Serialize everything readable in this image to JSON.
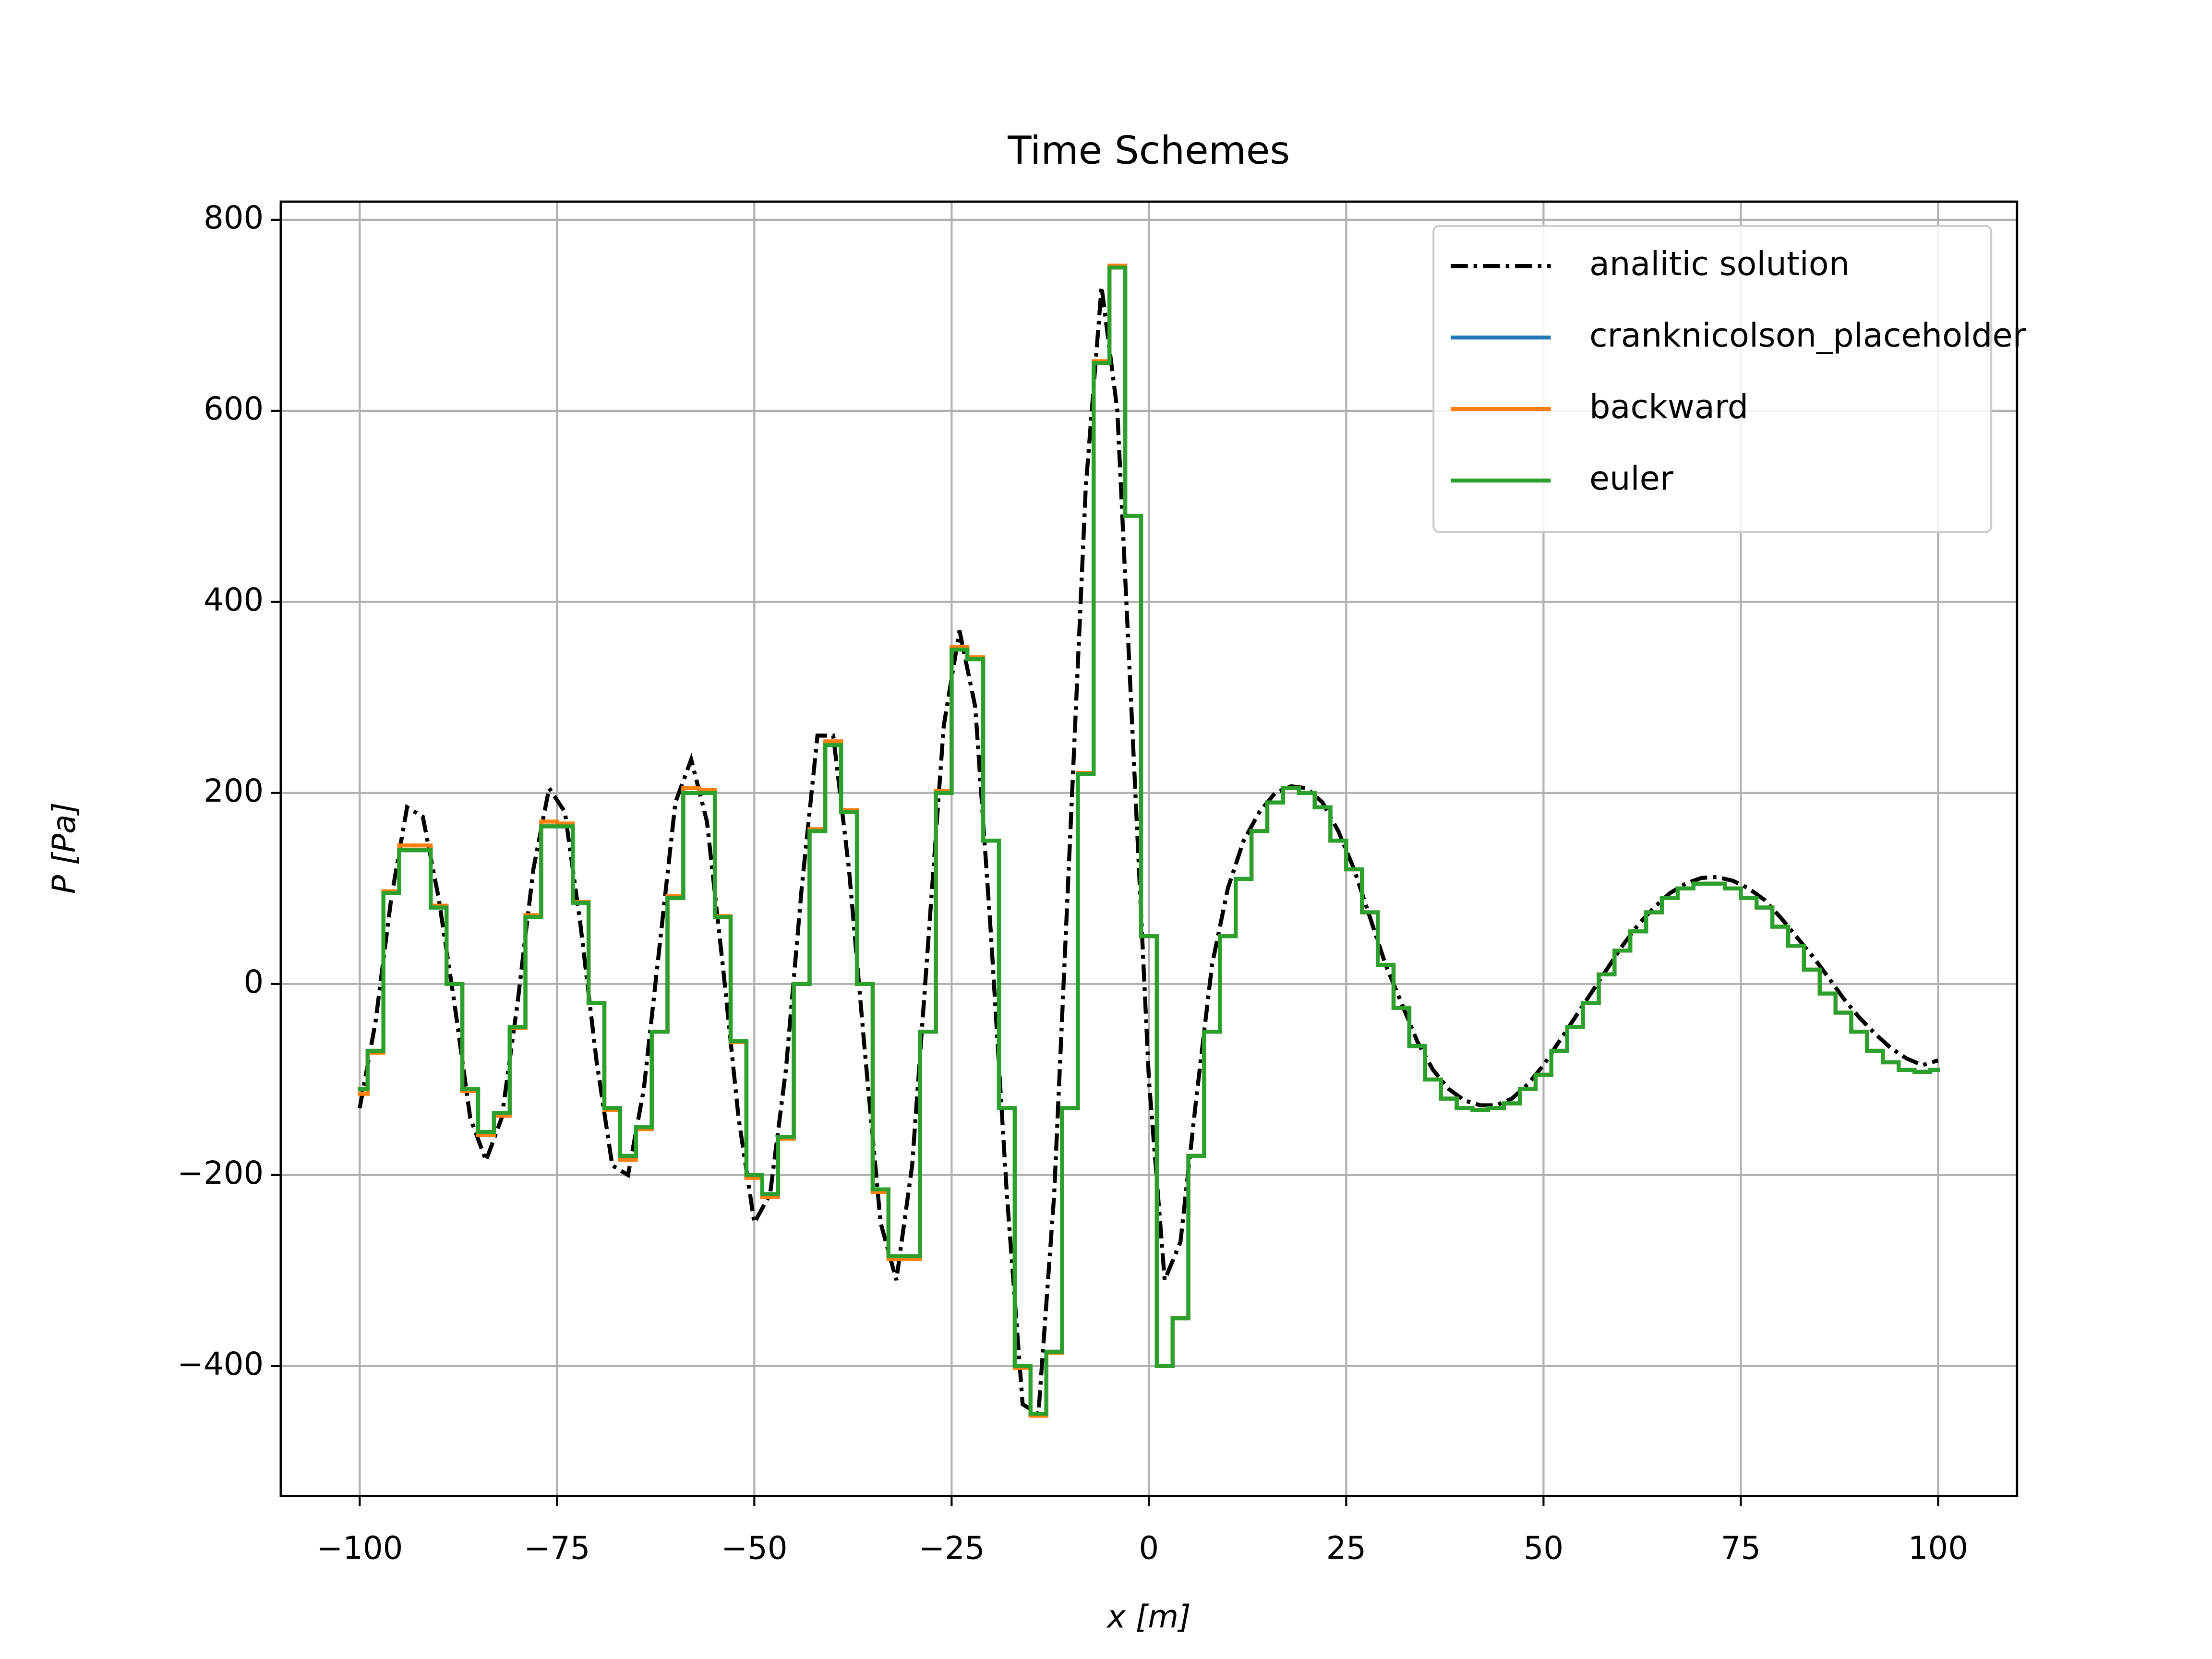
{
  "chart_data": {
    "type": "line",
    "title": "Time Schemes",
    "xlabel": "x [m]",
    "ylabel": "P [Pa]",
    "grid": true,
    "legend": "upper right",
    "xlim": [
      -110,
      110
    ],
    "ylim": [
      -536,
      819
    ],
    "xticks": [
      {
        "value": -100,
        "label": "−100"
      },
      {
        "value": -75,
        "label": "−75"
      },
      {
        "value": -50,
        "label": "−50"
      },
      {
        "value": -25,
        "label": "−25"
      },
      0,
      25,
      50,
      75,
      100
    ],
    "yticks": [
      {
        "value": -400,
        "label": "−400"
      },
      {
        "value": -200,
        "label": "−200"
      },
      0,
      200,
      400,
      600,
      800
    ],
    "x": [
      -100,
      -98,
      -96,
      -94,
      -92,
      -90,
      -88,
      -86,
      -84,
      -82,
      -80,
      -78,
      -76,
      -74,
      -72,
      -70,
      -68,
      -66,
      -64,
      -62,
      -60,
      -58,
      -56,
      -54,
      -52,
      -50,
      -48,
      -46,
      -44,
      -42,
      -40,
      -38,
      -36,
      -34,
      -32,
      -30,
      -28,
      -26,
      -24,
      -22,
      -20,
      -18,
      -16,
      -14,
      -12,
      -10,
      -8,
      -6,
      -4,
      -2,
      0,
      2,
      4,
      6,
      8,
      10,
      12,
      14,
      16,
      18,
      20,
      22,
      24,
      26,
      28,
      30,
      32,
      34,
      36,
      38,
      40,
      42,
      44,
      46,
      48,
      50,
      52,
      54,
      56,
      58,
      60,
      62,
      64,
      66,
      68,
      70,
      72,
      74,
      76,
      78,
      80,
      82,
      84,
      86,
      88,
      90,
      92,
      94,
      96,
      98,
      100
    ],
    "series": [
      {
        "name": "analitic solution",
        "color": "#000000",
        "linestyle": "dashdot",
        "drawstyle": "default",
        "values": [
          -130,
          -40,
          90,
          185,
          175,
          90,
          -20,
          -140,
          -185,
          -140,
          -20,
          120,
          205,
          180,
          60,
          -80,
          -190,
          -200,
          -110,
          40,
          190,
          235,
          170,
          20,
          -140,
          -250,
          -220,
          -90,
          100,
          260,
          260,
          120,
          -70,
          -250,
          -310,
          -190,
          40,
          270,
          370,
          290,
          50,
          -220,
          -440,
          -450,
          -220,
          150,
          520,
          730,
          600,
          250,
          -100,
          -310,
          -270,
          -120,
          20,
          100,
          150,
          180,
          200,
          207,
          205,
          190,
          160,
          120,
          70,
          20,
          -20,
          -60,
          -90,
          -110,
          -122,
          -127,
          -127,
          -120,
          -105,
          -85,
          -60,
          -35,
          -10,
          15,
          40,
          62,
          80,
          95,
          105,
          111,
          112,
          108,
          100,
          88,
          70,
          50,
          30,
          8,
          -15,
          -35,
          -52,
          -67,
          -78,
          -85,
          -80
        ]
      },
      {
        "name": "cranknicolson_placeholder",
        "color": "#1f77b4",
        "linestyle": "solid",
        "drawstyle": "steps-mid",
        "values": [
          -110,
          -70,
          95,
          140,
          140,
          80,
          0,
          -110,
          -155,
          -135,
          -45,
          70,
          165,
          165,
          85,
          -20,
          -130,
          -180,
          -150,
          -50,
          90,
          200,
          200,
          70,
          -60,
          -200,
          -220,
          -160,
          0,
          160,
          250,
          180,
          0,
          -215,
          -285,
          -285,
          -50,
          200,
          350,
          340,
          150,
          -130,
          -400,
          -450,
          -385,
          -130,
          220,
          650,
          750,
          490,
          50,
          -400,
          -350,
          -180,
          -50,
          50,
          110,
          160,
          190,
          205,
          200,
          185,
          150,
          120,
          75,
          20,
          -25,
          -65,
          -100,
          -120,
          -130,
          -132,
          -130,
          -125,
          -110,
          -95,
          -70,
          -45,
          -20,
          10,
          35,
          55,
          75,
          90,
          100,
          105,
          105,
          100,
          90,
          80,
          60,
          40,
          15,
          -10,
          -30,
          -50,
          -70,
          -82,
          -90,
          -92,
          -90
        ]
      },
      {
        "name": "backward",
        "color": "#ff7f0e",
        "linestyle": "solid",
        "drawstyle": "steps-mid",
        "values": [
          -115,
          -72,
          97,
          145,
          145,
          82,
          0,
          -112,
          -158,
          -138,
          -46,
          72,
          170,
          168,
          86,
          -20,
          -132,
          -184,
          -152,
          -50,
          92,
          205,
          203,
          71,
          -61,
          -203,
          -223,
          -162,
          0,
          162,
          254,
          182,
          0,
          -218,
          -288,
          -288,
          -50,
          202,
          353,
          342,
          150,
          -130,
          -402,
          -452,
          -386,
          -130,
          221,
          652,
          752,
          490,
          50,
          -400,
          -350,
          -180,
          -50,
          50,
          110,
          160,
          190,
          205,
          200,
          185,
          150,
          120,
          75,
          20,
          -25,
          -65,
          -100,
          -120,
          -130,
          -132,
          -130,
          -125,
          -110,
          -95,
          -70,
          -45,
          -20,
          10,
          35,
          55,
          75,
          90,
          100,
          105,
          105,
          100,
          90,
          80,
          60,
          40,
          15,
          -10,
          -30,
          -50,
          -70,
          -82,
          -90,
          -92,
          -90
        ]
      },
      {
        "name": "euler",
        "color": "#2ca02c",
        "linestyle": "solid",
        "drawstyle": "steps-mid",
        "values": [
          -110,
          -70,
          95,
          140,
          140,
          80,
          0,
          -110,
          -155,
          -135,
          -45,
          70,
          165,
          165,
          85,
          -20,
          -130,
          -180,
          -150,
          -50,
          90,
          200,
          200,
          70,
          -60,
          -200,
          -220,
          -160,
          0,
          160,
          250,
          180,
          0,
          -215,
          -285,
          -285,
          -50,
          200,
          350,
          340,
          150,
          -130,
          -400,
          -450,
          -385,
          -130,
          220,
          650,
          750,
          490,
          50,
          -400,
          -350,
          -180,
          -50,
          50,
          110,
          160,
          190,
          205,
          200,
          185,
          150,
          120,
          75,
          20,
          -25,
          -65,
          -100,
          -120,
          -130,
          -132,
          -130,
          -125,
          -110,
          -95,
          -70,
          -45,
          -20,
          10,
          35,
          55,
          75,
          90,
          100,
          105,
          105,
          100,
          90,
          80,
          60,
          40,
          15,
          -10,
          -30,
          -50,
          -70,
          -82,
          -90,
          -92,
          -90
        ]
      }
    ]
  }
}
